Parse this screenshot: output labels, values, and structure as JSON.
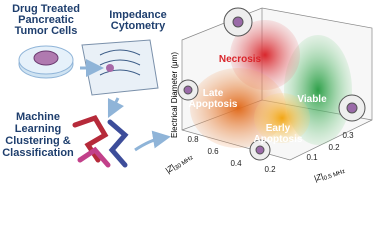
{
  "sample": {
    "lines": [
      "Drug Treated",
      "Pancreatic",
      "Tumor Cells"
    ]
  },
  "cytometry": {
    "lines": [
      "Impedance",
      "Cytometry"
    ]
  },
  "learning": {
    "lines": [
      "Machine",
      "Learning",
      "Clustering &",
      "Classification"
    ]
  },
  "plot": {
    "clusters": [
      {
        "lines": [
          "Necrosis"
        ]
      },
      {
        "lines": [
          "Late",
          "Apoptosis"
        ]
      },
      {
        "lines": [
          "Early",
          "Apoptosis"
        ]
      },
      {
        "lines": [
          "Viable"
        ]
      }
    ],
    "z_axis": {
      "label": "Electrical Diameter (μm)"
    },
    "x_axis": {
      "main": "|Z|",
      "sub": "30 MHz",
      "ticks": [
        "0.8",
        "0.6",
        "0.4",
        "0.2"
      ]
    },
    "y_axis": {
      "main": "|Z|",
      "sub": "0.5 MHz",
      "ticks": [
        "0.3",
        "0.2",
        "0.1"
      ]
    }
  }
}
